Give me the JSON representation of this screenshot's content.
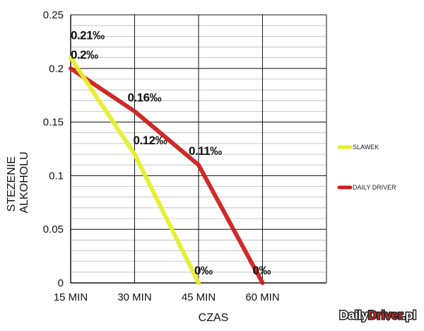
{
  "chart_data": {
    "type": "line",
    "xlabel": "CZAS",
    "ylabel_lines": [
      "STEZENIE",
      "ALKOHOLU"
    ],
    "categories": [
      "15 MIN",
      "30 MIN",
      "45 MIN",
      "60 MIN"
    ],
    "x_range": [
      15,
      75
    ],
    "y_range": [
      0,
      0.25
    ],
    "y_ticks": [
      "0",
      "0.05",
      "0.1",
      "0.15",
      "0.2",
      "0.25"
    ],
    "y_tick_values": [
      0,
      0.05,
      0.1,
      0.15,
      0.2,
      0.25
    ],
    "grid": "on",
    "legend_placement": "right",
    "series": [
      {
        "name": "SLAWEK",
        "color": "#e8ee2a",
        "points": [
          {
            "x": 15,
            "y": 0.21,
            "label": "0.21‰"
          },
          {
            "x": 30,
            "y": 0.12,
            "label": "0.12‰"
          },
          {
            "x": 45,
            "y": 0,
            "label": "0‰"
          }
        ]
      },
      {
        "name": "DAILY DRIVER",
        "color": "#cc1f1f",
        "points": [
          {
            "x": 15,
            "y": 0.2,
            "label": "0.2‰"
          },
          {
            "x": 30,
            "y": 0.16,
            "label": "0.16‰"
          },
          {
            "x": 45,
            "y": 0.11,
            "label": "0.11‰"
          },
          {
            "x": 60,
            "y": 0,
            "label": "0‰"
          }
        ]
      }
    ]
  },
  "brand": {
    "part1": "Daily",
    "part2": "Driver",
    "part3": ".pl"
  }
}
